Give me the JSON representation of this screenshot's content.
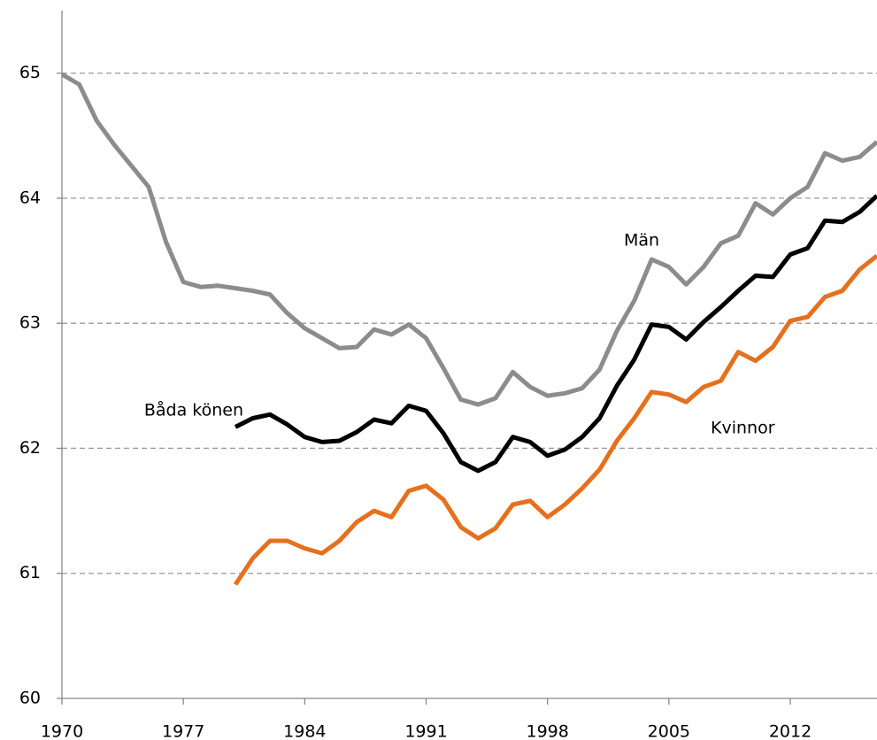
{
  "chart_data": {
    "type": "line",
    "x": [
      1970,
      1971,
      1972,
      1973,
      1974,
      1975,
      1976,
      1977,
      1978,
      1979,
      1980,
      1981,
      1982,
      1983,
      1984,
      1985,
      1986,
      1987,
      1988,
      1989,
      1990,
      1991,
      1992,
      1993,
      1994,
      1995,
      1996,
      1997,
      1998,
      1999,
      2000,
      2001,
      2002,
      2003,
      2004,
      2005,
      2006,
      2007,
      2008,
      2009,
      2010,
      2011,
      2012,
      2013,
      2014,
      2015,
      2016,
      2017
    ],
    "series": [
      {
        "name": "Män",
        "color": "#8c8c8c",
        "values": [
          64.99,
          64.91,
          64.62,
          64.43,
          64.26,
          64.09,
          63.65,
          63.33,
          63.29,
          63.3,
          63.28,
          63.26,
          63.23,
          63.08,
          62.96,
          62.88,
          62.8,
          62.81,
          62.95,
          62.91,
          62.99,
          62.88,
          62.64,
          62.39,
          62.35,
          62.4,
          62.61,
          62.49,
          62.42,
          62.44,
          62.48,
          62.63,
          62.94,
          63.18,
          63.51,
          63.45,
          63.31,
          63.45,
          63.64,
          63.7,
          63.96,
          63.87,
          64.0,
          64.09,
          64.36,
          64.3,
          64.33,
          64.45
        ]
      },
      {
        "name": "Båda könen",
        "color": "#000000",
        "values": [
          null,
          null,
          null,
          null,
          null,
          null,
          null,
          null,
          null,
          null,
          62.17,
          62.24,
          62.27,
          62.19,
          62.09,
          62.05,
          62.06,
          62.13,
          62.23,
          62.2,
          62.34,
          62.3,
          62.12,
          61.89,
          61.82,
          61.89,
          62.09,
          62.05,
          61.94,
          61.99,
          62.09,
          62.24,
          62.5,
          62.71,
          62.99,
          62.97,
          62.87,
          63.01,
          63.13,
          63.26,
          63.38,
          63.37,
          63.55,
          63.6,
          63.82,
          63.81,
          63.89,
          64.02
        ]
      },
      {
        "name": "Kvinnor",
        "color": "#e5701d",
        "values": [
          null,
          null,
          null,
          null,
          null,
          null,
          null,
          null,
          null,
          null,
          60.91,
          61.12,
          61.26,
          61.26,
          61.2,
          61.16,
          61.26,
          61.41,
          61.5,
          61.45,
          61.66,
          61.7,
          61.59,
          61.37,
          61.28,
          61.36,
          61.55,
          61.58,
          61.45,
          61.55,
          61.68,
          61.83,
          62.06,
          62.24,
          62.45,
          62.43,
          62.37,
          62.49,
          62.54,
          62.77,
          62.7,
          62.81,
          63.02,
          63.05,
          63.21,
          63.26,
          63.43,
          63.54
        ]
      }
    ],
    "xlim": [
      1970,
      2017
    ],
    "xticks": [
      1970,
      1977,
      1984,
      1991,
      1998,
      2005,
      2012
    ],
    "ylim": [
      60,
      65.5
    ],
    "yticks": [
      60,
      61,
      62,
      63,
      64,
      65
    ],
    "grid": true
  }
}
